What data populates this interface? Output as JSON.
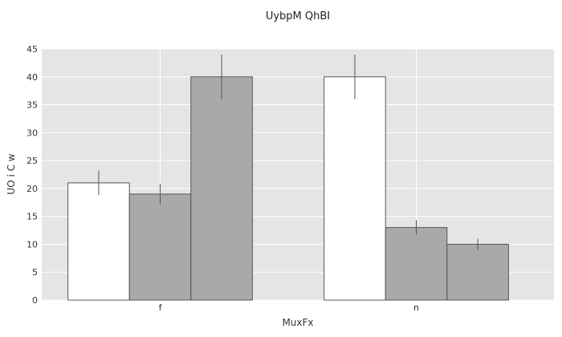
{
  "chart_data": {
    "type": "bar",
    "title": "UybpM QhBI",
    "xlabel": "MuxFx",
    "ylabel": "UO i C w",
    "categories": [
      "f",
      "n"
    ],
    "ylim": [
      0,
      45
    ],
    "yticks": [
      0,
      5,
      10,
      15,
      20,
      25,
      30,
      35,
      40,
      45
    ],
    "grid": true,
    "series": [
      {
        "color": "#ffffff",
        "values": [
          21,
          40
        ],
        "errors": [
          2.2,
          4
        ]
      },
      {
        "color": "#a9a9a9",
        "values": [
          19,
          13
        ],
        "errors": [
          1.8,
          1.3
        ]
      },
      {
        "color": "#a9a9a9",
        "values": [
          40,
          10
        ],
        "errors": [
          4,
          1
        ]
      }
    ]
  }
}
